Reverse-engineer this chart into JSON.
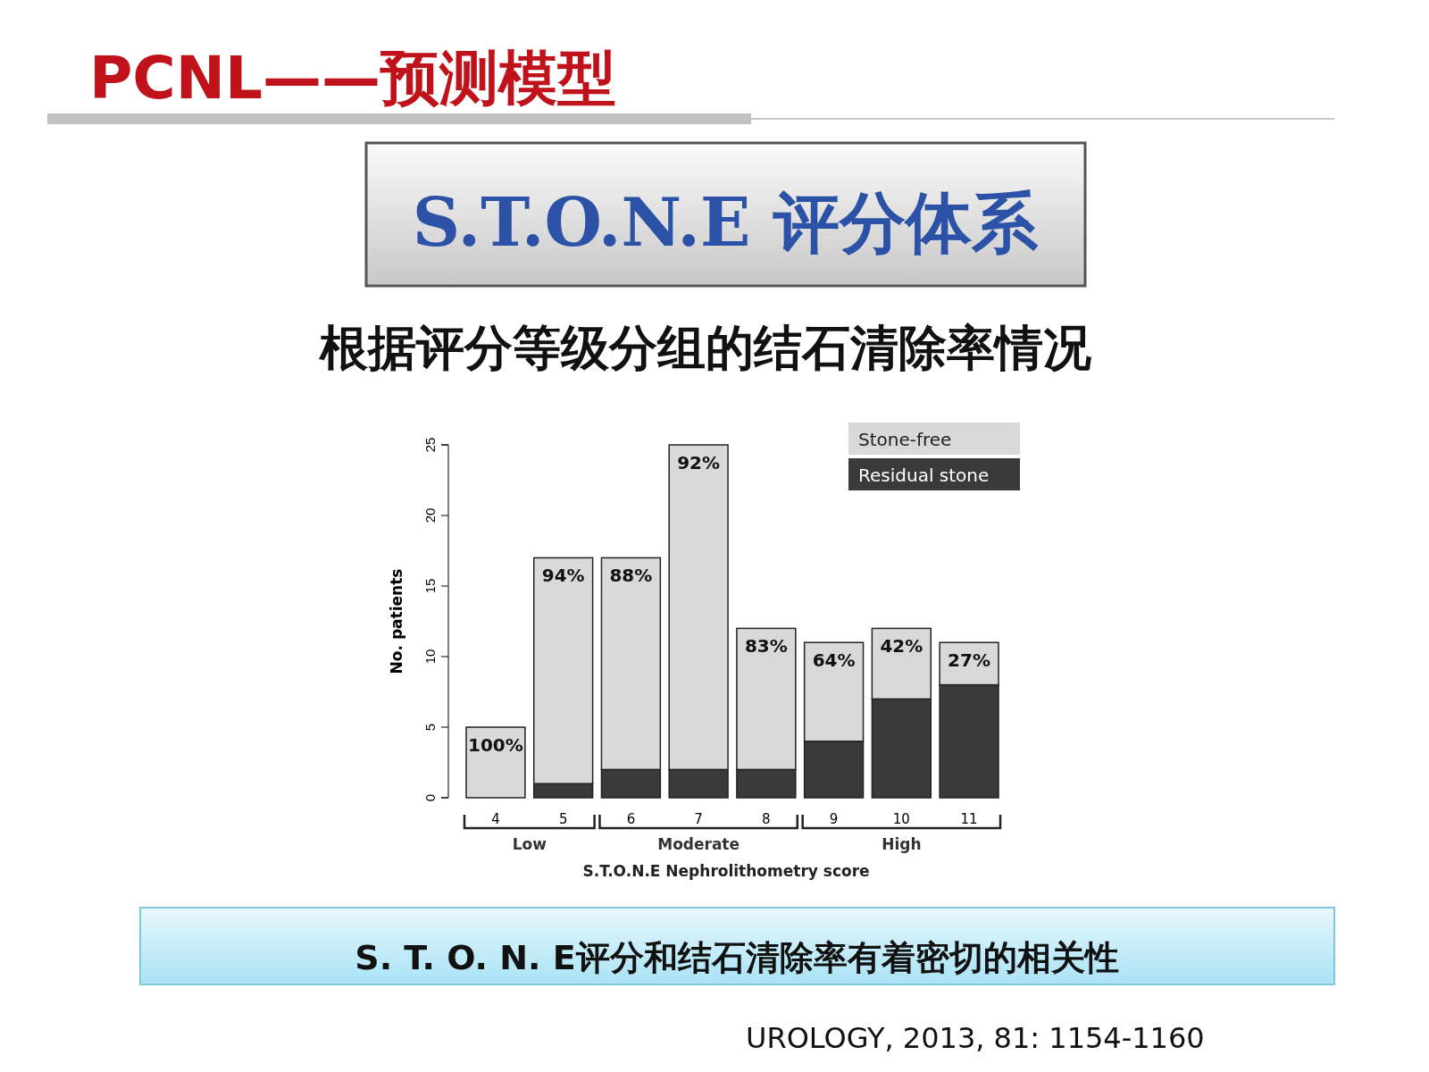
{
  "chart_data": {
    "type": "bar",
    "stacked": true,
    "title": "PCNL——预测模型",
    "subtitle": "S.T.O.N.E 评分体系",
    "xlabel": "S.T.O.N.E Nephrolithometry score",
    "ylabel": "No. patients",
    "categories": [
      "4",
      "5",
      "6",
      "7",
      "8",
      "9",
      "10",
      "11"
    ],
    "series": [
      {
        "name": "Residual stone",
        "color": "#3a3a3a",
        "values": [
          0,
          1,
          2,
          2,
          2,
          4,
          7,
          8
        ]
      },
      {
        "name": "Stone-free",
        "color": "#d9d9d9",
        "values": [
          5,
          16,
          15,
          23,
          10,
          7,
          5,
          3
        ]
      }
    ],
    "ylim": [
      0,
      25
    ],
    "yticks": [
      0,
      5,
      10,
      15,
      20,
      25
    ],
    "grid": false,
    "legend": "top right",
    "annotations": [
      "根据评分等级分组的结石清除率情况",
      "Low",
      "Moderate",
      "High",
      "S. T. O. N. E评分和结石清除率有着密切的相关性",
      "UROLOGY, 2013, 81: 1154-1160",
      {
        "text": "100%",
        "x": "4",
        "y": 5
      },
      {
        "text": "94%",
        "x": "5",
        "y": 17
      },
      {
        "text": "88%",
        "x": "6",
        "y": 17
      },
      {
        "text": "92%",
        "x": "7",
        "y": 25
      },
      {
        "text": "83%",
        "x": "8",
        "y": 12
      },
      {
        "text": "64%",
        "x": "9",
        "y": 11
      },
      {
        "text": "42%",
        "x": "10",
        "y": 12
      },
      {
        "text": "27%",
        "x": "11",
        "y": 11
      }
    ]
  }
}
